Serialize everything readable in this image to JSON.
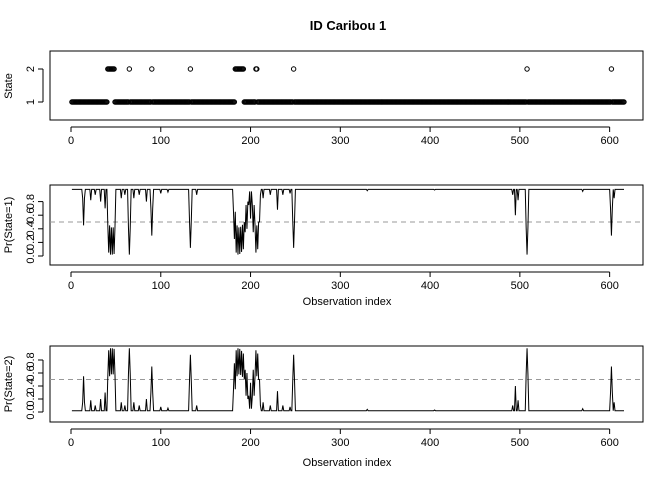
{
  "chart_data": [
    {
      "type": "scatter",
      "title": "ID Caribou 1",
      "xlabel": "",
      "ylabel": "State",
      "xlim": [
        0,
        616
      ],
      "xticks": [
        0,
        100,
        200,
        300,
        400,
        500,
        600
      ],
      "ylim": [
        1,
        2
      ],
      "yticks": [
        1,
        2
      ],
      "marker": "open-circle",
      "state2_index": [
        41,
        42,
        43,
        44,
        45,
        46,
        47,
        48,
        65,
        90,
        133,
        183,
        184,
        185,
        186,
        187,
        188,
        189,
        190,
        191,
        192,
        206,
        207,
        248,
        508,
        602
      ],
      "default_state": 1,
      "n_obs": 616
    },
    {
      "type": "line",
      "title": "",
      "xlabel": "Observation index",
      "ylabel": "Pr(State=1)",
      "xlim": [
        0,
        616
      ],
      "xticks": [
        0,
        100,
        200,
        300,
        400,
        500,
        600
      ],
      "ylim": [
        0,
        1
      ],
      "yticks": [
        0.0,
        0.2,
        0.4,
        0.6,
        0.8
      ],
      "ytick_labels": [
        "0.0",
        "0.2",
        "0.4",
        "0.6",
        "0.8"
      ],
      "reference_line": 0.5,
      "base_level": 0.98,
      "dips": [
        [
          14,
          0.45
        ],
        [
          22,
          0.82
        ],
        [
          27,
          0.9
        ],
        [
          33,
          0.8
        ],
        [
          38,
          0.7
        ],
        [
          42,
          0.05
        ],
        [
          44,
          0.02
        ],
        [
          46,
          0.02
        ],
        [
          48,
          0.03
        ],
        [
          56,
          0.85
        ],
        [
          60,
          0.9
        ],
        [
          65,
          0.02
        ],
        [
          70,
          0.85
        ],
        [
          76,
          0.9
        ],
        [
          84,
          0.8
        ],
        [
          90,
          0.3
        ],
        [
          100,
          0.92
        ],
        [
          108,
          0.94
        ],
        [
          133,
          0.12
        ],
        [
          140,
          0.9
        ],
        [
          182,
          0.25
        ],
        [
          184,
          0.05
        ],
        [
          186,
          0.02
        ],
        [
          188,
          0.03
        ],
        [
          190,
          0.06
        ],
        [
          192,
          0.1
        ],
        [
          194,
          0.35
        ],
        [
          196,
          0.4
        ],
        [
          198,
          0.75
        ],
        [
          200,
          0.55
        ],
        [
          203,
          0.35
        ],
        [
          206,
          0.05
        ],
        [
          208,
          0.1
        ],
        [
          210,
          0.5
        ],
        [
          214,
          0.85
        ],
        [
          222,
          0.9
        ],
        [
          230,
          0.68
        ],
        [
          236,
          0.9
        ],
        [
          244,
          0.92
        ],
        [
          248,
          0.12
        ],
        [
          330,
          0.96
        ],
        [
          405,
          0.97
        ],
        [
          492,
          0.9
        ],
        [
          495,
          0.6
        ],
        [
          498,
          0.82
        ],
        [
          508,
          0.02
        ],
        [
          570,
          0.95
        ],
        [
          602,
          0.3
        ],
        [
          605,
          0.85
        ]
      ]
    },
    {
      "type": "line",
      "title": "",
      "xlabel": "Observation index",
      "ylabel": "Pr(State=2)",
      "xlim": [
        0,
        616
      ],
      "xticks": [
        0,
        100,
        200,
        300,
        400,
        500,
        600
      ],
      "ylim": [
        0,
        1
      ],
      "yticks": [
        0.0,
        0.2,
        0.4,
        0.6,
        0.8
      ],
      "ytick_labels": [
        "0.0",
        "0.2",
        "0.4",
        "0.6",
        "0.8"
      ],
      "reference_line": 0.5,
      "relation": "1 - Pr(State=1)"
    }
  ]
}
